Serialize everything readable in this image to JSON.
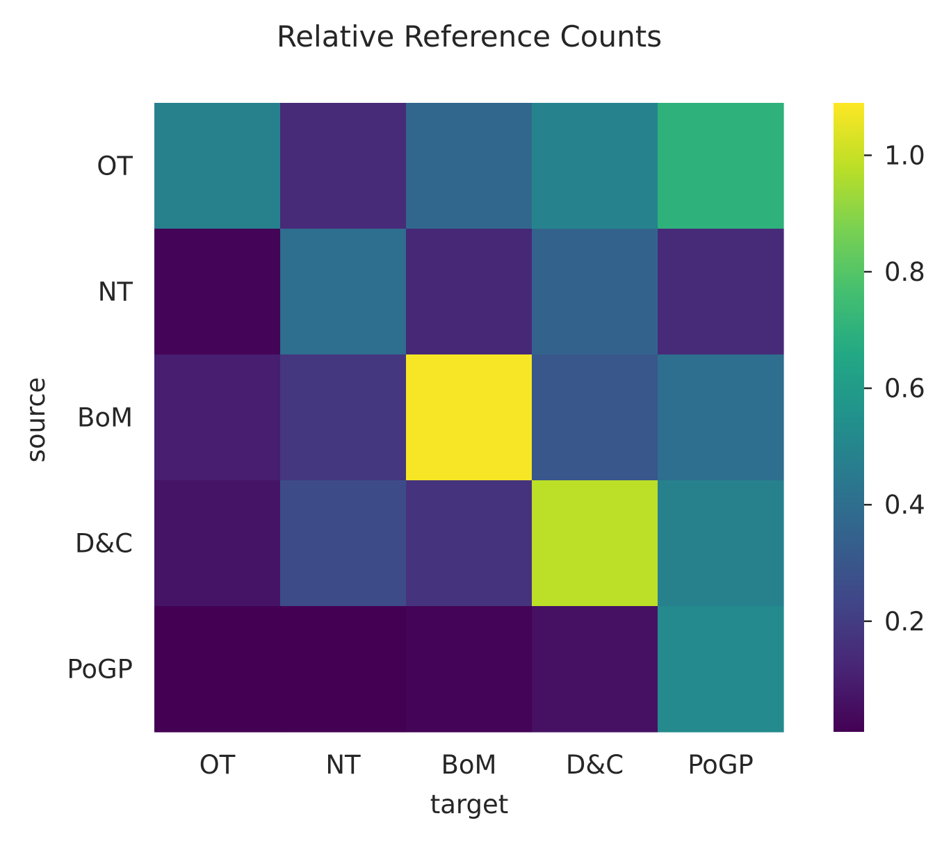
{
  "chart_data": {
    "type": "heatmap",
    "title": "Relative Reference Counts",
    "xlabel": "target",
    "ylabel": "source",
    "x_categories": [
      "OT",
      "NT",
      "BoM",
      "D&C",
      "PoGP"
    ],
    "y_categories": [
      "OT",
      "NT",
      "BoM",
      "D&C",
      "PoGP"
    ],
    "values": [
      [
        0.48,
        0.14,
        0.37,
        0.49,
        0.7
      ],
      [
        0.02,
        0.4,
        0.13,
        0.35,
        0.14
      ],
      [
        0.1,
        0.18,
        1.08,
        0.3,
        0.4
      ],
      [
        0.07,
        0.26,
        0.17,
        0.98,
        0.48
      ],
      [
        0.01,
        0.01,
        0.02,
        0.06,
        0.52
      ]
    ],
    "colormap": "viridis",
    "vmin": 0.01,
    "vmax": 1.09,
    "colorbar_ticks": [
      0.2,
      0.4,
      0.6,
      0.8,
      1.0
    ],
    "colorbar_tick_labels": [
      "0.2",
      "0.4",
      "0.6",
      "0.8",
      "1.0"
    ],
    "grid": false,
    "colorbar_placement": "right"
  }
}
